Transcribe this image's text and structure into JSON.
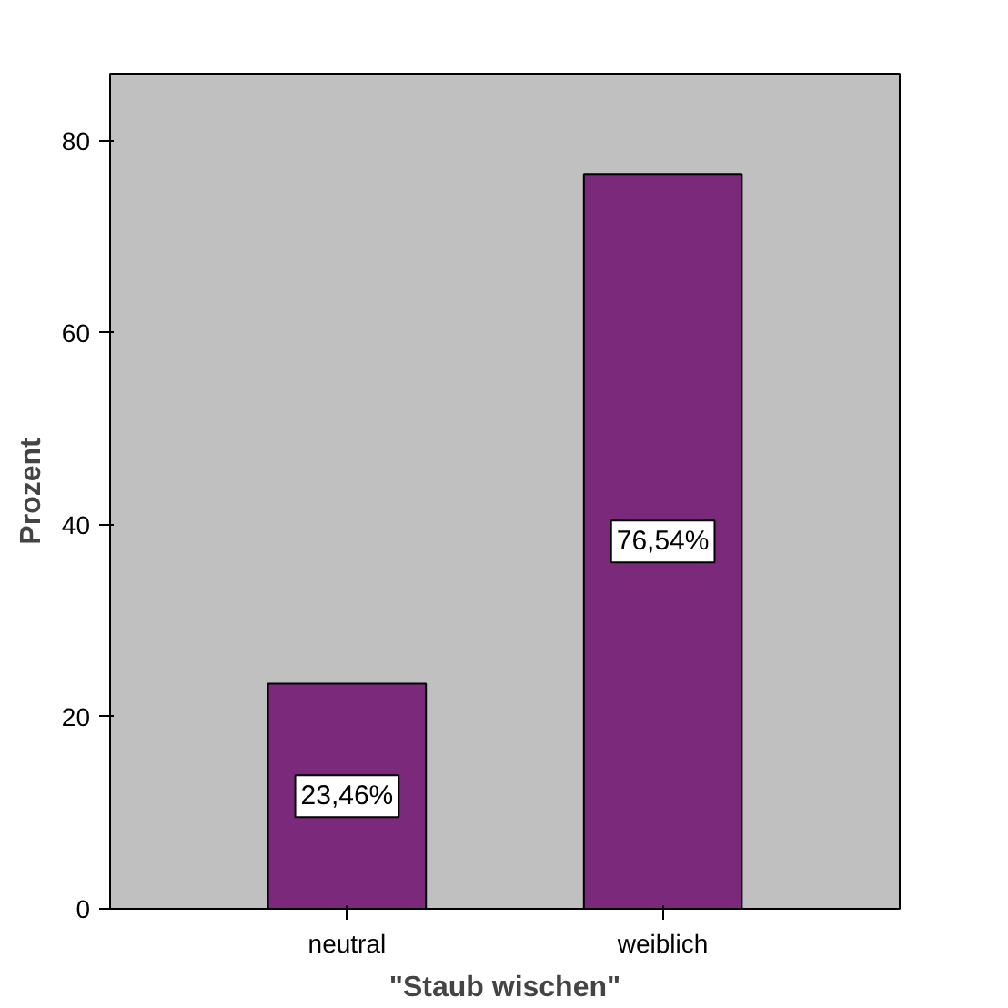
{
  "chart_data": {
    "type": "bar",
    "xlabel": "\"Staub wischen\"",
    "ylabel": "Prozent",
    "categories": [
      "neutral",
      "weiblich"
    ],
    "values": [
      23.46,
      76.54
    ],
    "value_labels": [
      "23,46%",
      "76,54%"
    ],
    "color": "#7b2a7b",
    "ylim": [
      0,
      87
    ],
    "yticks": [
      0,
      20,
      40,
      60,
      80
    ],
    "grid": false
  }
}
